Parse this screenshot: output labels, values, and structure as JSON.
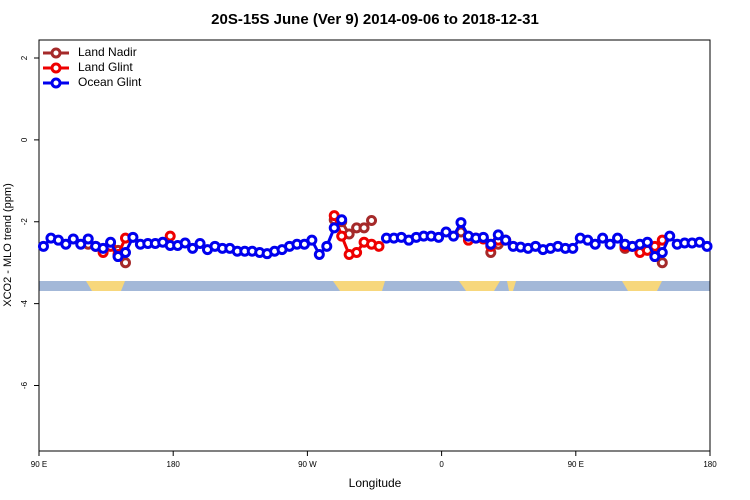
{
  "chart_data": {
    "type": "line",
    "title": "20S-15S June (Ver 9)   2014-09-06 to 2018-12-31",
    "x_label": "Longitude",
    "y_label": "XCO2 - MLO trend (ppm)",
    "x": [
      93,
      98,
      103,
      108,
      113,
      118,
      123,
      128,
      133,
      138,
      143,
      148,
      153,
      158,
      163,
      168,
      173,
      178,
      183,
      188,
      193,
      198,
      203,
      208,
      213,
      218,
      223,
      228,
      233,
      238,
      243,
      248,
      253,
      258,
      263,
      268,
      273,
      278,
      283,
      288,
      293,
      298,
      303,
      308,
      313,
      318,
      323,
      328,
      333,
      338,
      343,
      348,
      353,
      358,
      363,
      368,
      373,
      378,
      383,
      388,
      393,
      398,
      403,
      408,
      413,
      418,
      423,
      428,
      433,
      438,
      443,
      448,
      453,
      458,
      463,
      468,
      473,
      478,
      483,
      488,
      493,
      498,
      503,
      508,
      513,
      518,
      523,
      528,
      533,
      538
    ],
    "series": [
      {
        "name": "Land Nadir",
        "color": "#a52a2a",
        "values": [
          null,
          null,
          null,
          null,
          null,
          null,
          -2.55,
          null,
          null,
          null,
          -2.7,
          -3.0,
          null,
          null,
          null,
          null,
          null,
          null,
          null,
          null,
          null,
          null,
          null,
          null,
          null,
          null,
          null,
          null,
          null,
          null,
          null,
          null,
          null,
          null,
          null,
          null,
          null,
          null,
          null,
          -1.95,
          -2.0,
          -2.3,
          -2.15,
          -2.15,
          -1.97,
          null,
          null,
          null,
          null,
          null,
          null,
          null,
          null,
          null,
          null,
          null,
          -2.25,
          -2.4,
          null,
          null,
          -2.75,
          -2.55,
          null,
          null,
          null,
          null,
          null,
          null,
          null,
          null,
          null,
          null,
          null,
          null,
          null,
          null,
          null,
          null,
          -2.65,
          null,
          null,
          null,
          null,
          -3.0,
          null,
          null,
          null,
          null,
          null,
          null
        ]
      },
      {
        "name": "Land Glint",
        "color": "#ee0000",
        "values": [
          null,
          null,
          null,
          null,
          null,
          null,
          null,
          -2.6,
          -2.75,
          -2.6,
          -2.8,
          -2.4,
          null,
          null,
          null,
          null,
          null,
          -2.35,
          null,
          null,
          null,
          null,
          null,
          null,
          null,
          null,
          null,
          null,
          null,
          null,
          null,
          null,
          null,
          null,
          null,
          null,
          null,
          null,
          null,
          -1.85,
          -2.35,
          -2.8,
          -2.75,
          -2.5,
          -2.55,
          -2.6,
          null,
          null,
          null,
          null,
          null,
          null,
          null,
          null,
          null,
          null,
          null,
          -2.45,
          -2.4,
          -2.42,
          -2.6,
          -2.45,
          -2.45,
          null,
          null,
          null,
          null,
          null,
          null,
          null,
          null,
          null,
          null,
          null,
          null,
          null,
          null,
          null,
          -2.6,
          -2.6,
          -2.75,
          -2.7,
          -2.6,
          -2.45,
          null,
          null,
          null,
          null,
          null,
          null
        ]
      },
      {
        "name": "Ocean Glint",
        "color": "#0000ee",
        "values": [
          -2.6,
          -2.4,
          -2.45,
          -2.55,
          -2.42,
          -2.55,
          -2.42,
          -2.6,
          -2.65,
          -2.5,
          -2.85,
          -2.75,
          -2.38,
          -2.55,
          -2.53,
          -2.53,
          -2.5,
          -2.58,
          -2.58,
          -2.52,
          -2.65,
          -2.53,
          -2.68,
          -2.6,
          -2.65,
          -2.65,
          -2.72,
          -2.72,
          -2.72,
          -2.75,
          -2.78,
          -2.72,
          -2.68,
          -2.6,
          -2.55,
          -2.55,
          -2.45,
          -2.8,
          -2.6,
          -2.15,
          -1.95,
          null,
          null,
          null,
          null,
          null,
          -2.4,
          -2.4,
          -2.38,
          -2.45,
          -2.38,
          -2.35,
          -2.35,
          -2.38,
          -2.25,
          -2.35,
          -2.02,
          -2.35,
          -2.4,
          -2.38,
          -2.55,
          -2.32,
          -2.45,
          -2.6,
          -2.62,
          -2.65,
          -2.6,
          -2.68,
          -2.65,
          -2.6,
          -2.65,
          -2.65,
          -2.4,
          -2.45,
          -2.55,
          -2.4,
          -2.55,
          -2.4,
          -2.55,
          -2.6,
          -2.55,
          -2.5,
          -2.85,
          -2.75,
          -2.35,
          -2.55,
          -2.52,
          -2.52,
          -2.5,
          -2.6
        ]
      }
    ],
    "xlim": [
      90,
      540
    ],
    "xticks": [
      {
        "value": 90,
        "label": "90 E"
      },
      180,
      {
        "value": 270,
        "label": "90 W"
      },
      {
        "value": 360,
        "label": "0"
      },
      {
        "value": 450,
        "label": "90 E"
      },
      {
        "value": 540,
        "label": "180"
      }
    ],
    "ylim": [
      -7.6,
      2.44
    ],
    "yticks": [
      -6,
      -4,
      -2,
      0,
      2
    ],
    "legend": "top-left"
  }
}
